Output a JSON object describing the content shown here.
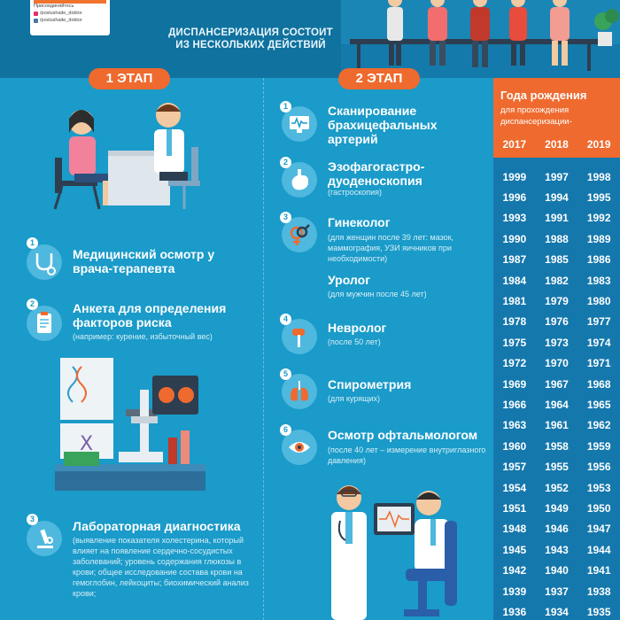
{
  "header": {
    "join_label": "Присоединяйтесь",
    "social": [
      {
        "name": "instagram",
        "handle": "/poslushaite_doktor",
        "color": "#e1306c"
      },
      {
        "name": "vk",
        "handle": "/poslushaite_doktor",
        "color": "#4a76a8"
      }
    ],
    "title": "ДИСПАНСЕРИЗАЦИЯ СОСТОИТ ИЗ НЕСКОЛЬКИХ ДЕЙСТВИЙ"
  },
  "stage1": {
    "label": "1 ЭТАП",
    "steps": [
      {
        "num": "1",
        "title": "Медицинский осмотр у врача-терапевта",
        "icon": "stethoscope-icon"
      },
      {
        "num": "2",
        "title": "Анкета для определения факторов риска",
        "sub": "(например: курение, избыточный вес)",
        "icon": "clipboard-icon"
      },
      {
        "num": "3",
        "title": "Лабораторная диагностика",
        "sub": "(выявление показателя холестерина, который влияет на появление сердечно-сосудистых заболеваний; уровень содержания глюкозы в крови; общее исследование состава крови на гемоглобин, лейкоциты; биохимический анализ крови;",
        "icon": "microscope-icon"
      }
    ]
  },
  "stage2": {
    "label": "2 ЭТАП",
    "steps": [
      {
        "num": "1",
        "title": "Сканирование брахицефальных артерий",
        "sub": "",
        "icon": "monitor-scan-icon"
      },
      {
        "num": "2",
        "title": "Эзофагогастро-дуоденоскопия",
        "sub": "(гастроскопия)",
        "icon": "stomach-icon"
      },
      {
        "num": "3",
        "title": "Гинеколог",
        "sub": "(для женщин после 39 лет: мазок, маммография, УЗИ яичников при необходимости)",
        "title2": "Уролог",
        "sub2": "(для мужчин после 45 лет)",
        "icon": "gender-icon"
      },
      {
        "num": "4",
        "title": "Невролог",
        "sub": "(после 50 лет)",
        "icon": "reflex-hammer-icon"
      },
      {
        "num": "5",
        "title": "Спирометрия",
        "sub": "(для курящих)",
        "icon": "lungs-icon"
      },
      {
        "num": "6",
        "title": "Осмотр офтальмологом",
        "sub": "(после 40 лет – измерение внутриглазного давления)",
        "icon": "eye-icon"
      }
    ]
  },
  "table": {
    "title": "Года рождения",
    "subtitle": "для прохождения диспансеризации-",
    "columns": [
      "2017",
      "2018",
      "2019"
    ],
    "rows": [
      [
        "1999",
        "1997",
        "1998"
      ],
      [
        "1996",
        "1994",
        "1995"
      ],
      [
        "1993",
        "1991",
        "1992"
      ],
      [
        "1990",
        "1988",
        "1989"
      ],
      [
        "1987",
        "1985",
        "1986"
      ],
      [
        "1984",
        "1982",
        "1983"
      ],
      [
        "1981",
        "1979",
        "1980"
      ],
      [
        "1978",
        "1976",
        "1977"
      ],
      [
        "1975",
        "1973",
        "1974"
      ],
      [
        "1972",
        "1970",
        "1971"
      ],
      [
        "1969",
        "1967",
        "1968"
      ],
      [
        "1966",
        "1964",
        "1965"
      ],
      [
        "1963",
        "1961",
        "1962"
      ],
      [
        "1960",
        "1958",
        "1959"
      ],
      [
        "1957",
        "1955",
        "1956"
      ],
      [
        "1954",
        "1952",
        "1953"
      ],
      [
        "1951",
        "1949",
        "1950"
      ],
      [
        "1948",
        "1946",
        "1947"
      ],
      [
        "1945",
        "1943",
        "1944"
      ],
      [
        "1942",
        "1940",
        "1941"
      ],
      [
        "1939",
        "1937",
        "1938"
      ],
      [
        "1936",
        "1934",
        "1935"
      ]
    ]
  },
  "colors": {
    "background": "#1a9bc9",
    "header": "#10729f",
    "accent": "#ef6a2e",
    "table_body": "#1578ad"
  }
}
